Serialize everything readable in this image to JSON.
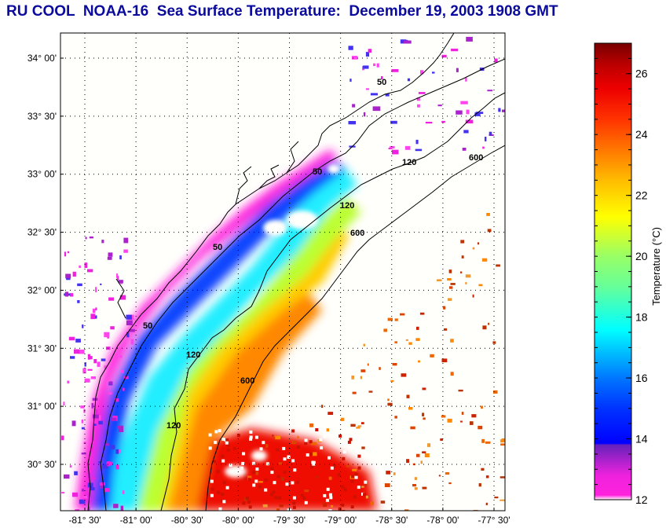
{
  "title": "RU COOL  NOAA-16  Sea Surface Temperature:  December 19, 2003 1908 GMT",
  "map": {
    "region": "South Carolina / Georgia coast, South Atlantic Bight",
    "lon_range": [
      -81.6,
      -77.3
    ],
    "lat_range": [
      30.1,
      34.2
    ],
    "lat_ticks": [
      {
        "value": 34.0,
        "label": "34° 00'"
      },
      {
        "value": 33.5,
        "label": "33° 30'"
      },
      {
        "value": 33.0,
        "label": "33° 00'"
      },
      {
        "value": 32.5,
        "label": "32° 30'"
      },
      {
        "value": 32.0,
        "label": "32° 00'"
      },
      {
        "value": 31.5,
        "label": "31° 30'"
      },
      {
        "value": 31.0,
        "label": "31° 00'"
      },
      {
        "value": 30.5,
        "label": "30° 30'"
      }
    ],
    "lon_ticks": [
      {
        "value": -81.5,
        "label": "-81° 30'"
      },
      {
        "value": -81.0,
        "label": "-81° 00'"
      },
      {
        "value": -80.5,
        "label": "-80° 30'"
      },
      {
        "value": -80.0,
        "label": "-80° 00'"
      },
      {
        "value": -79.5,
        "label": "-79° 30'"
      },
      {
        "value": -79.0,
        "label": "-79° 00'"
      },
      {
        "value": -78.5,
        "label": "-78° 30'"
      },
      {
        "value": -78.0,
        "label": "-78° 00'"
      },
      {
        "value": -77.5,
        "label": "-77° 30'"
      }
    ],
    "grid": "dotted",
    "isobath_labels": [
      "50",
      "120",
      "600"
    ],
    "isobath_color": "#000000",
    "coastline_color": "#000000"
  },
  "colorbar": {
    "label": "Temperature (°C)",
    "min": 12,
    "max": 27,
    "ticks": [
      {
        "value": 26,
        "label": "26"
      },
      {
        "value": 24,
        "label": "24"
      },
      {
        "value": 22,
        "label": "22"
      },
      {
        "value": 20,
        "label": "20"
      },
      {
        "value": 18,
        "label": "18"
      },
      {
        "value": 16,
        "label": "16"
      },
      {
        "value": 14,
        "label": "14"
      },
      {
        "value": 12,
        "label": "12"
      }
    ],
    "stops": [
      {
        "t": 12.0,
        "color": "#ffffff"
      },
      {
        "t": 12.15,
        "color": "#ff22dd"
      },
      {
        "t": 12.8,
        "color": "#ee22dd"
      },
      {
        "t": 13.3,
        "color": "#aa22cc"
      },
      {
        "t": 13.8,
        "color": "#6622bb"
      },
      {
        "t": 13.85,
        "color": "#0000ff"
      },
      {
        "t": 15.0,
        "color": "#0033ff"
      },
      {
        "t": 16.0,
        "color": "#0077ff"
      },
      {
        "t": 17.0,
        "color": "#00ccff"
      },
      {
        "t": 17.6,
        "color": "#00ffff"
      },
      {
        "t": 19.0,
        "color": "#66ff99"
      },
      {
        "t": 20.0,
        "color": "#99ff66"
      },
      {
        "t": 21.3,
        "color": "#ffff00"
      },
      {
        "t": 22.5,
        "color": "#ffbb00"
      },
      {
        "t": 23.5,
        "color": "#ff7700"
      },
      {
        "t": 24.5,
        "color": "#ff3300"
      },
      {
        "t": 25.5,
        "color": "#ee0000"
      },
      {
        "t": 26.3,
        "color": "#bb0000"
      },
      {
        "t": 27.0,
        "color": "#770000"
      }
    ]
  }
}
